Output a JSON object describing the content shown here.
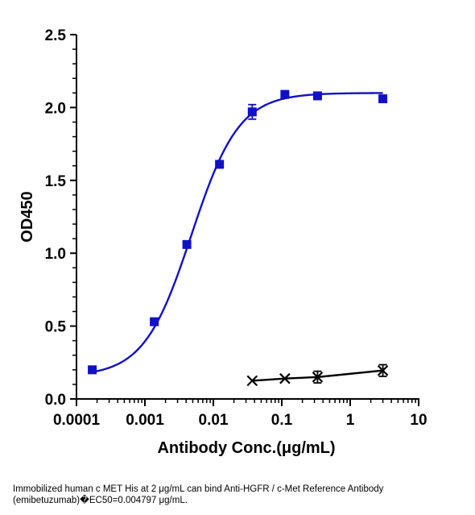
{
  "chart_data": {
    "type": "scatter",
    "xlabel": "Antibody Conc.(μg/mL)",
    "ylabel": "OD450",
    "xscale": "log",
    "xlim": [
      0.0001,
      10
    ],
    "ylim": [
      0,
      2.5
    ],
    "x_tick_labels": [
      "0.0001",
      "0.001",
      "0.01",
      "0.1",
      "1",
      "10"
    ],
    "y_tick_labels": [
      "0.0",
      "0.5",
      "1.0",
      "1.5",
      "2.0",
      "2.5"
    ],
    "grid": false,
    "legend": "none",
    "series": [
      {
        "marker": "square",
        "color": "#1010c8",
        "fit": "4PL",
        "points": [
          {
            "x": 0.00017,
            "y": 0.2
          },
          {
            "x": 0.00137,
            "y": 0.53
          },
          {
            "x": 0.0041,
            "y": 1.06
          },
          {
            "x": 0.0123,
            "y": 1.61
          },
          {
            "x": 0.037,
            "y": 1.97,
            "err": 0.05
          },
          {
            "x": 0.111,
            "y": 2.09
          },
          {
            "x": 0.333,
            "y": 2.08
          },
          {
            "x": 3.0,
            "y": 2.06
          }
        ],
        "fit_params": {
          "bottom": 0.155,
          "top": 2.1,
          "ec50": 0.004797,
          "hill": 1.25
        }
      },
      {
        "marker": "x",
        "color": "#000000",
        "fit": "line",
        "points": [
          {
            "x": 0.037,
            "y": 0.125
          },
          {
            "x": 0.111,
            "y": 0.14
          },
          {
            "x": 0.333,
            "y": 0.15,
            "err": 0.04
          },
          {
            "x": 3.0,
            "y": 0.195,
            "err": 0.04
          }
        ]
      }
    ]
  },
  "caption": "Immobilized human c MET His at 2 μg/mL can bind  Anti-HGFR / c-Met Reference Antibody (emibetuzumab)�EC50=0.004797 μg/mL."
}
